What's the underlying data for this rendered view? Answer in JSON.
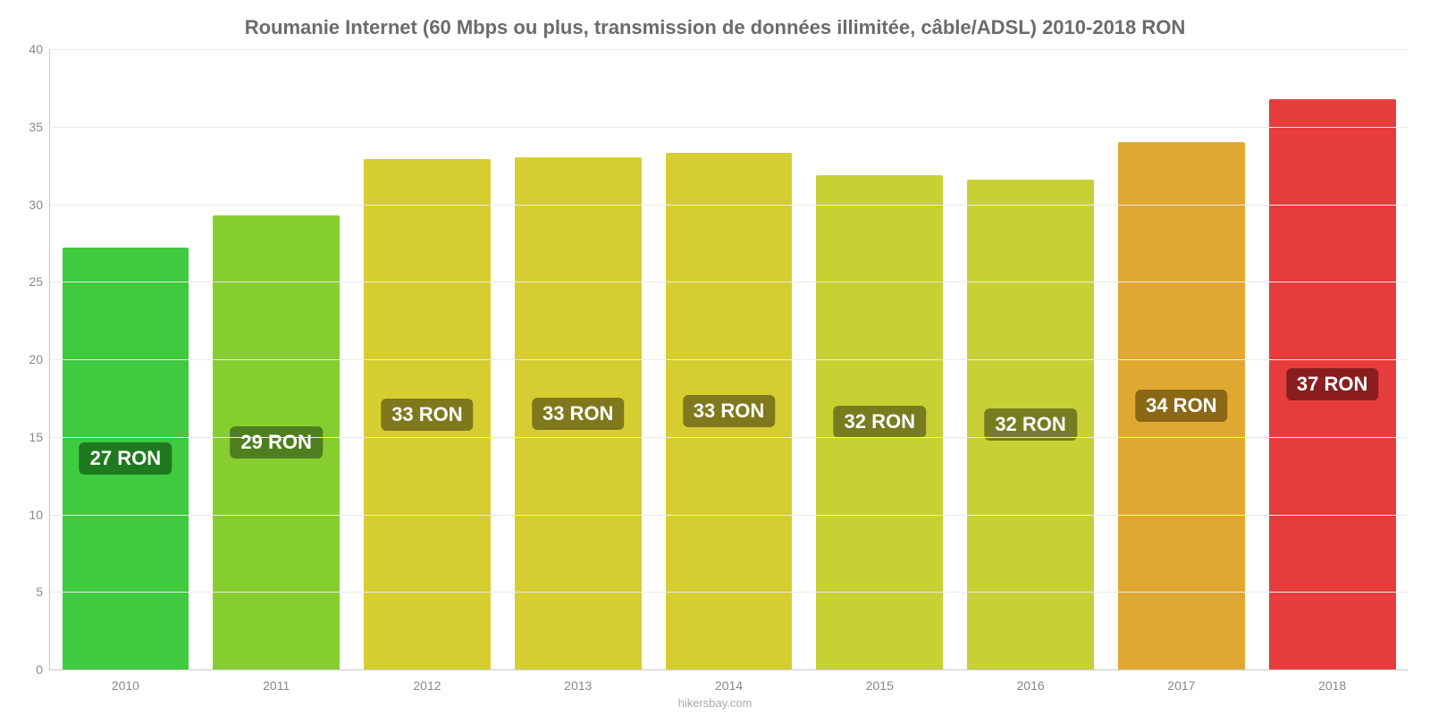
{
  "chart": {
    "type": "bar",
    "title": "Roumanie Internet (60 Mbps ou plus, transmission de données illimitée, câble/ADSL) 2010-2018 RON",
    "title_fontsize": 22,
    "title_color": "#6b6b6b",
    "source": "hikersbay.com",
    "background_color": "#ffffff",
    "grid_color": "#e9e9e9",
    "axis_color": "#c9c9c9",
    "tick_color": "#888888",
    "tick_fontsize": 14,
    "ylim": [
      0,
      40
    ],
    "ytick_step": 5,
    "yticks": [
      0,
      5,
      10,
      15,
      20,
      25,
      30,
      35,
      40
    ],
    "categories": [
      "2010",
      "2011",
      "2012",
      "2013",
      "2014",
      "2015",
      "2016",
      "2017",
      "2018"
    ],
    "values": [
      27.2,
      29.3,
      32.9,
      33.0,
      33.3,
      31.9,
      31.6,
      34.0,
      36.8
    ],
    "display_labels": [
      "27 RON",
      "29 RON",
      "33 RON",
      "33 RON",
      "33 RON",
      "32 RON",
      "32 RON",
      "34 RON",
      "37 RON"
    ],
    "bar_colors": [
      "#3fca3f",
      "#86ce30",
      "#d6ce30",
      "#d6ce30",
      "#d6ce30",
      "#c9d034",
      "#c9d036",
      "#e0a830",
      "#e63c3c"
    ],
    "label_bg_colors": [
      "#1f7a1f",
      "#4f7e1e",
      "#80781c",
      "#80781c",
      "#80781c",
      "#787c1f",
      "#787c20",
      "#8a6816",
      "#8a1e1e"
    ],
    "label_fontsize": 22,
    "bar_width": 0.84
  }
}
